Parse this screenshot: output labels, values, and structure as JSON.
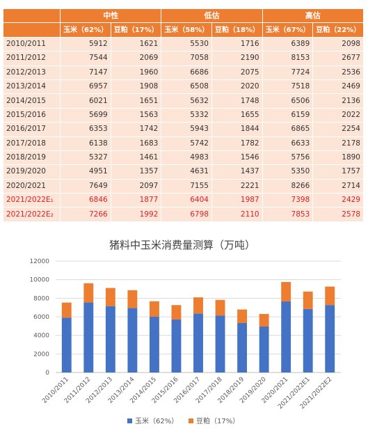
{
  "table": {
    "groups": [
      "中性",
      "低估",
      "高估"
    ],
    "subheaders": [
      "玉米（62%）",
      "豆粕（17%）",
      "玉米（58%）",
      "豆粕（18%）",
      "玉米（67%）",
      "豆粕（22%）"
    ],
    "rows": [
      {
        "year": "2010/2011",
        "values": [
          "5912",
          "1621",
          "5530",
          "1716",
          "6389",
          "2098"
        ],
        "forecast": false
      },
      {
        "year": "2011/2012",
        "values": [
          "7544",
          "2069",
          "7058",
          "2190",
          "8153",
          "2677"
        ],
        "forecast": false
      },
      {
        "year": "2012/2013",
        "values": [
          "7147",
          "1960",
          "6686",
          "2075",
          "7724",
          "2536"
        ],
        "forecast": false
      },
      {
        "year": "2013/2014",
        "values": [
          "6957",
          "1908",
          "6508",
          "2020",
          "7518",
          "2469"
        ],
        "forecast": false
      },
      {
        "year": "2014/2015",
        "values": [
          "6021",
          "1651",
          "5632",
          "1748",
          "6506",
          "2136"
        ],
        "forecast": false
      },
      {
        "year": "2015/2016",
        "values": [
          "5699",
          "1563",
          "5332",
          "1655",
          "6159",
          "2022"
        ],
        "forecast": false
      },
      {
        "year": "2016/2017",
        "values": [
          "6353",
          "1742",
          "5943",
          "1844",
          "6865",
          "2254"
        ],
        "forecast": false
      },
      {
        "year": "2017/2018",
        "values": [
          "6138",
          "1683",
          "5742",
          "1782",
          "6633",
          "2178"
        ],
        "forecast": false
      },
      {
        "year": "2018/2019",
        "values": [
          "5327",
          "1461",
          "4983",
          "1546",
          "5756",
          "1890"
        ],
        "forecast": false
      },
      {
        "year": "2019/2020",
        "values": [
          "4951",
          "1357",
          "4631",
          "1437",
          "5350",
          "1757"
        ],
        "forecast": false
      },
      {
        "year": "2020/2021",
        "values": [
          "7649",
          "2097",
          "7155",
          "2221",
          "8266",
          "2714"
        ],
        "forecast": false
      },
      {
        "year": "2021/2022E₁",
        "values": [
          "6846",
          "1877",
          "6404",
          "1987",
          "7398",
          "2429"
        ],
        "forecast": true
      },
      {
        "year": "2021/2022E₂",
        "values": [
          "7266",
          "1992",
          "6798",
          "2110",
          "7853",
          "2578"
        ],
        "forecast": true
      }
    ]
  },
  "chart_data": {
    "type": "bar",
    "stacked": true,
    "title": "猪料中玉米消费量测算（万吨）",
    "categories": [
      "2010/2011",
      "2011/2012",
      "2012/2013",
      "2013/2014",
      "2014/2015",
      "2015/2016",
      "2016/2017",
      "2017/2018",
      "2018/2019",
      "2019/2020",
      "2020/2021",
      "2021/2022E1",
      "2021/2022E2"
    ],
    "series": [
      {
        "name": "玉米（62%）",
        "color": "#4472c4",
        "values": [
          5912,
          7544,
          7147,
          6957,
          6021,
          5699,
          6353,
          6138,
          5327,
          4951,
          7649,
          6846,
          7266
        ]
      },
      {
        "name": "豆粕（17%）",
        "color": "#ed7d31",
        "values": [
          1621,
          2069,
          1960,
          1908,
          1651,
          1563,
          1742,
          1683,
          1461,
          1357,
          2097,
          1877,
          1992
        ]
      }
    ],
    "ylim": [
      0,
      12000
    ],
    "yticks": [
      0,
      2000,
      4000,
      6000,
      8000,
      10000,
      12000
    ],
    "grid": true,
    "legend": "bottom"
  }
}
